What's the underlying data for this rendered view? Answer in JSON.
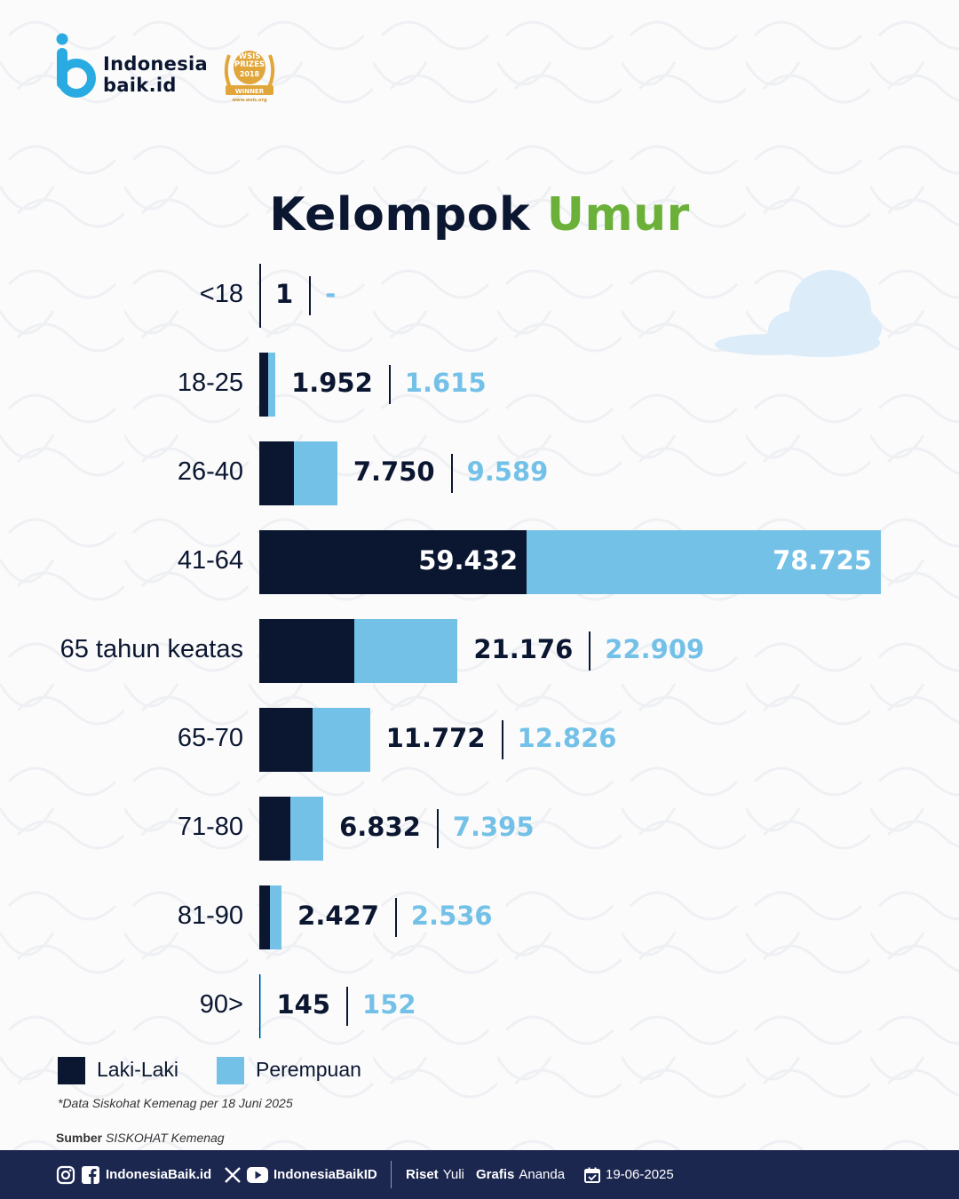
{
  "header": {
    "logo_line1": "Indonesia",
    "logo_line2": "baik.id",
    "award": {
      "line1": "WSIS",
      "line2": "PRIZES",
      "year": "2018",
      "badge": "WINNER",
      "url": "www.wsis.org"
    }
  },
  "title": {
    "part1": "Kelompok",
    "part2": "Umur"
  },
  "colors": {
    "male": "#0b1630",
    "female": "#74c1e8",
    "title_accent": "#6bb139",
    "footer_bg": "#1c2750"
  },
  "chart_data": {
    "type": "bar",
    "orientation": "horizontal",
    "stacked": true,
    "categories": [
      "<18",
      "18-25",
      "26-40",
      "41-64",
      "65 tahun keatas",
      "65-70",
      "71-80",
      "81-90",
      "90>"
    ],
    "series": [
      {
        "name": "Laki-Laki",
        "values": [
          1,
          1952,
          7750,
          59432,
          21176,
          11772,
          6832,
          2427,
          145
        ],
        "labels": [
          "1",
          "1.952",
          "7.750",
          "59.432",
          "21.176",
          "11.772",
          "6.832",
          "2.427",
          "145"
        ]
      },
      {
        "name": "Perempuan",
        "values": [
          0,
          1615,
          9589,
          78725,
          22909,
          12826,
          7395,
          2536,
          152
        ],
        "labels": [
          "-",
          "1.615",
          "9.589",
          "78.725",
          "22.909",
          "12.826",
          "7.395",
          "2.536",
          "152"
        ]
      }
    ],
    "title": "Kelompok Umur",
    "legend": "bottom-left",
    "grid": false
  },
  "legend": {
    "male": "Laki-Laki",
    "female": "Perempuan"
  },
  "note": "*Data Siskohat Kemenag per 18 Juni 2025",
  "source": {
    "label": "Sumber",
    "value": "SISKOHAT Kemenag"
  },
  "footer": {
    "handle1": "IndonesiaBaik.id",
    "handle2": "IndonesiaBaikID",
    "riset_label": "Riset",
    "riset_name": "Yuli",
    "grafis_label": "Grafis",
    "grafis_name": "Ananda",
    "date": "19-06-2025",
    "icons": [
      "instagram-icon",
      "facebook-icon",
      "x-icon",
      "youtube-icon",
      "calendar-icon"
    ]
  }
}
